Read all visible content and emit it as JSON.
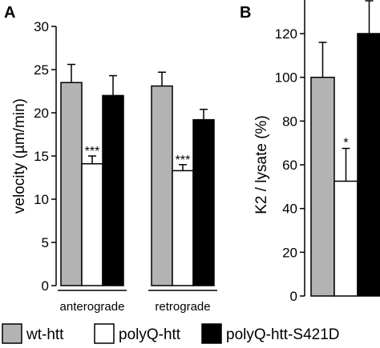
{
  "legend": [
    {
      "label": "wt-htt",
      "color": "#b3b3b3"
    },
    {
      "label": "polyQ-htt",
      "color": "#ffffff"
    },
    {
      "label": "polyQ-htt-S421D",
      "color": "#000000"
    }
  ],
  "chart_data": [
    {
      "panel": "A",
      "type": "bar",
      "ylabel": "velocity (µm/min)",
      "ylim": [
        0,
        30
      ],
      "yticks": [
        "0",
        "5",
        "10",
        "15",
        "20",
        "25",
        "30"
      ],
      "categories": [
        "anterograde",
        "retrograde"
      ],
      "series": [
        {
          "name": "wt-htt",
          "color": "#b3b3b3",
          "values": [
            23.5,
            23.1
          ],
          "errors": [
            2.1,
            1.6
          ]
        },
        {
          "name": "polyQ-htt",
          "color": "#ffffff",
          "values": [
            14.1,
            13.3
          ],
          "errors": [
            0.9,
            0.7
          ],
          "annotations": [
            "***",
            "***"
          ]
        },
        {
          "name": "polyQ-htt-S421D",
          "color": "#000000",
          "values": [
            22.0,
            19.2
          ],
          "errors": [
            2.3,
            1.2
          ]
        }
      ]
    },
    {
      "panel": "B",
      "type": "bar",
      "ylabel": "K2 / lysate (%)",
      "ylim": [
        0,
        125
      ],
      "yticks": [
        "0",
        "20",
        "40",
        "60",
        "80",
        "100",
        "120"
      ],
      "series": [
        {
          "name": "wt-htt",
          "color": "#b3b3b3",
          "values": [
            100
          ],
          "errors": [
            16
          ]
        },
        {
          "name": "polyQ-htt",
          "color": "#ffffff",
          "values": [
            52.5
          ],
          "errors": [
            15
          ],
          "annotations": [
            "*"
          ]
        },
        {
          "name": "polyQ-htt-S421D",
          "color": "#000000",
          "values": [
            120
          ],
          "errors": [
            17
          ]
        }
      ]
    }
  ]
}
